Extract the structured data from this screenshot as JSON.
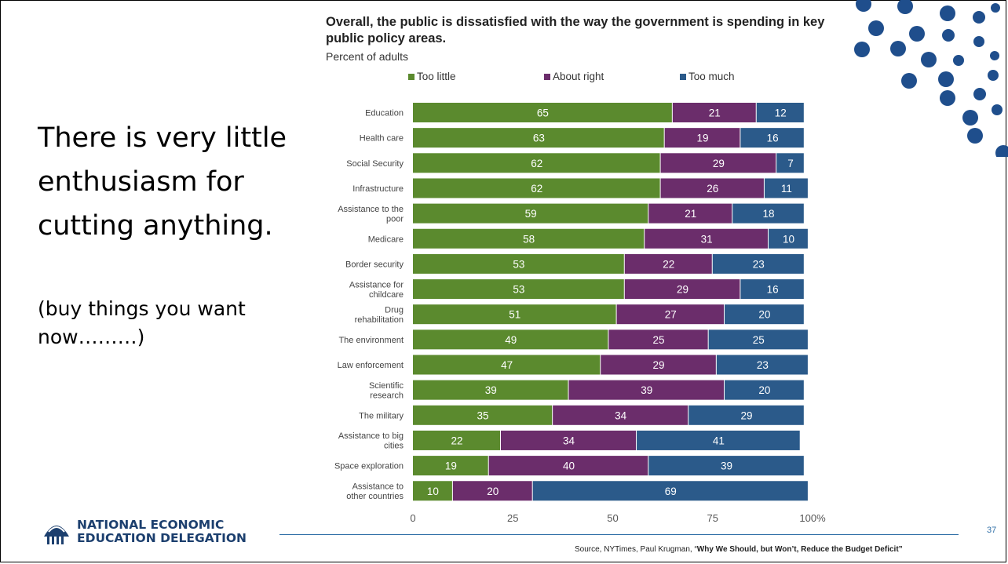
{
  "slide": {
    "main_text": "There is very little enthusiasm for cutting anything.",
    "sub_text": "(buy things you want now………)",
    "page_number": "37",
    "source_prefix": "Source, NYTimes, Paul Krugman, “",
    "source_title": "Why We Should, but Won’t, Reduce the Budget Deficit”",
    "logo_line1": "NATIONAL ECONOMIC",
    "logo_line2": "EDUCATION DELEGATION",
    "accent_color": "#1f4e8c"
  },
  "chart_data": {
    "type": "bar",
    "orientation": "horizontal",
    "stacked": true,
    "title": "Overall, the public is dissatisfied with the way the government is spending in key public policy areas.",
    "subtitle": "Percent of adults",
    "categories": [
      "Education",
      "Health care",
      "Social Security",
      "Infrastructure",
      "Assistance to the poor",
      "Medicare",
      "Border security",
      "Assistance for childcare",
      "Drug rehabilitation",
      "The environment",
      "Law enforcement",
      "Scientific research",
      "The military",
      "Assistance to big cities",
      "Space exploration",
      "Assistance to other countries"
    ],
    "series": [
      {
        "name": "Too little",
        "color": "#5b8a2e",
        "values": [
          65,
          63,
          62,
          62,
          59,
          58,
          53,
          53,
          51,
          49,
          47,
          39,
          35,
          22,
          19,
          10
        ]
      },
      {
        "name": "About right",
        "color": "#6b2d6b",
        "values": [
          21,
          19,
          29,
          26,
          21,
          31,
          22,
          29,
          27,
          25,
          29,
          39,
          34,
          34,
          40,
          20
        ]
      },
      {
        "name": "Too much",
        "color": "#2b5a8a",
        "values": [
          12,
          16,
          7,
          11,
          18,
          10,
          23,
          16,
          20,
          25,
          23,
          20,
          29,
          41,
          39,
          69
        ]
      }
    ],
    "xticks": [
      "0",
      "25",
      "50",
      "75",
      "100%"
    ],
    "xlim": [
      0,
      100
    ],
    "legend_position": "top",
    "grid": false
  }
}
